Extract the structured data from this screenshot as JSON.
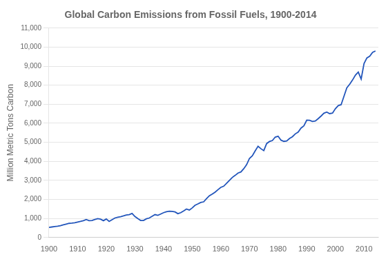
{
  "chart_data": {
    "type": "line",
    "title": "Global Carbon Emissions from Fossil Fuels, 1900-2014",
    "y_label": "Million Metric Tons Carbon",
    "color": "#2255bb",
    "x": [
      1900,
      1901,
      1902,
      1903,
      1904,
      1905,
      1906,
      1907,
      1908,
      1909,
      1910,
      1911,
      1912,
      1913,
      1914,
      1915,
      1916,
      1917,
      1918,
      1919,
      1920,
      1921,
      1922,
      1923,
      1924,
      1925,
      1926,
      1927,
      1928,
      1929,
      1930,
      1931,
      1932,
      1933,
      1934,
      1935,
      1936,
      1937,
      1938,
      1939,
      1940,
      1941,
      1942,
      1943,
      1944,
      1945,
      1946,
      1947,
      1948,
      1949,
      1950,
      1951,
      1952,
      1953,
      1954,
      1955,
      1956,
      1957,
      1958,
      1959,
      1960,
      1961,
      1962,
      1963,
      1964,
      1965,
      1966,
      1967,
      1968,
      1969,
      1970,
      1971,
      1972,
      1973,
      1974,
      1975,
      1976,
      1977,
      1978,
      1979,
      1980,
      1981,
      1982,
      1983,
      1984,
      1985,
      1986,
      1987,
      1988,
      1989,
      1990,
      1991,
      1992,
      1993,
      1994,
      1995,
      1996,
      1997,
      1998,
      1999,
      2000,
      2001,
      2002,
      2003,
      2004,
      2005,
      2006,
      2007,
      2008,
      2009,
      2010,
      2011,
      2012,
      2013,
      2014
    ],
    "values": [
      534,
      554,
      574,
      594,
      624,
      664,
      704,
      744,
      754,
      774,
      814,
      844,
      884,
      944,
      884,
      894,
      944,
      994,
      964,
      884,
      974,
      844,
      934,
      1024,
      1064,
      1094,
      1134,
      1184,
      1204,
      1264,
      1104,
      994,
      894,
      894,
      984,
      1024,
      1114,
      1204,
      1164,
      1234,
      1304,
      1354,
      1384,
      1374,
      1344,
      1254,
      1304,
      1394,
      1494,
      1444,
      1554,
      1694,
      1764,
      1844,
      1874,
      2044,
      2194,
      2284,
      2384,
      2514,
      2634,
      2694,
      2844,
      3004,
      3154,
      3264,
      3384,
      3444,
      3614,
      3824,
      4154,
      4294,
      4554,
      4794,
      4664,
      4564,
      4934,
      5044,
      5094,
      5274,
      5319,
      5116,
      5049,
      5071,
      5204,
      5295,
      5444,
      5534,
      5749,
      5865,
      6163,
      6158,
      6094,
      6117,
      6244,
      6380,
      6530,
      6590,
      6508,
      6533,
      6765,
      6929,
      6977,
      7421,
      7867,
      8054,
      8276,
      8532,
      8688,
      8325,
      9139,
      9432,
      9523,
      9724,
      9800
    ],
    "xlim": [
      1900,
      2015
    ],
    "xticks": [
      1900,
      1910,
      1920,
      1930,
      1940,
      1950,
      1960,
      1970,
      1980,
      1990,
      2000,
      2010
    ],
    "ylim": [
      0,
      11000
    ],
    "yticks": [
      0,
      {
        "value": 1000,
        "label": "1,000"
      },
      {
        "value": 2000,
        "label": "2,000"
      },
      {
        "value": 3000,
        "label": "3,000"
      },
      {
        "value": 4000,
        "label": "4,000"
      },
      {
        "value": 5000,
        "label": "5,000"
      },
      {
        "value": 6000,
        "label": "6,000"
      },
      {
        "value": 7000,
        "label": "7,000"
      },
      {
        "value": 8000,
        "label": "8,000"
      },
      {
        "value": 9000,
        "label": "9,000"
      },
      {
        "value": 10000,
        "label": "10,000"
      },
      {
        "value": 11000,
        "label": "11,000"
      }
    ],
    "grid": "y"
  }
}
